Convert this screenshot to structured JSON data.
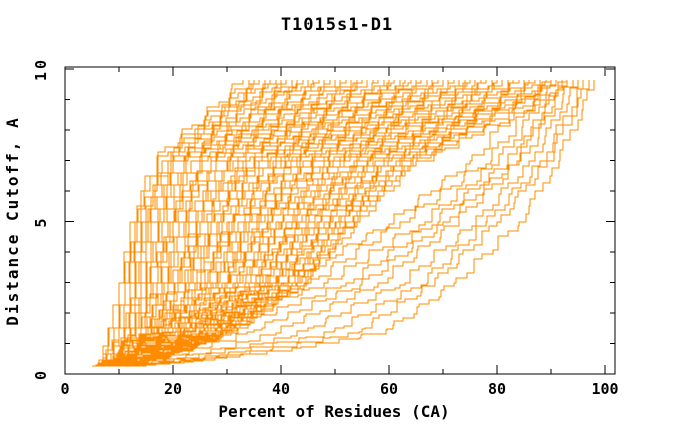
{
  "figure": {
    "background": "#ffffff",
    "axis_color": "#000000",
    "curve_color": "#ff8c00"
  },
  "chart_data": {
    "type": "line",
    "title": "T1015s1-D1",
    "xlabel": "Percent of Residues (CA)",
    "ylabel": "Distance Cutoff, A",
    "xlim": [
      0,
      102
    ],
    "ylim": [
      0,
      10.07
    ],
    "grid": "off",
    "legend": "none",
    "x_major_ticks": [
      0,
      20,
      40,
      60,
      80,
      100
    ],
    "x_minor_ticks": [
      10,
      30,
      50,
      70,
      90
    ],
    "y_major_ticks": [
      0,
      5,
      10
    ],
    "y_minor_ticks": [
      1,
      2,
      3,
      4,
      6,
      7,
      8,
      9
    ],
    "series_color": "#ff8c00",
    "n_series": 80,
    "anchor_cutoffs": [
      0.25,
      1.5,
      3,
      5,
      7,
      9.65
    ],
    "curves": [
      [
        5,
        8,
        10,
        12,
        16,
        33
      ],
      [
        6,
        8,
        10,
        13,
        17,
        34
      ],
      [
        7,
        9,
        11,
        13,
        18,
        35
      ],
      [
        8,
        9,
        11,
        14,
        18,
        36
      ],
      [
        5,
        10,
        12,
        14,
        19,
        36
      ],
      [
        6,
        10,
        12,
        15,
        20,
        37
      ],
      [
        7,
        10,
        13,
        15,
        20,
        38
      ],
      [
        8,
        11,
        13,
        16,
        21,
        39
      ],
      [
        5,
        11,
        14,
        17,
        22,
        40
      ],
      [
        6,
        12,
        14,
        17,
        22,
        41
      ],
      [
        7,
        12,
        15,
        18,
        23,
        42
      ],
      [
        8,
        12,
        15,
        19,
        24,
        43
      ],
      [
        5,
        13,
        16,
        19,
        25,
        43
      ],
      [
        6,
        13,
        16,
        20,
        25,
        44
      ],
      [
        7,
        13,
        17,
        20,
        26,
        45
      ],
      [
        8,
        14,
        17,
        21,
        27,
        46
      ],
      [
        5,
        14,
        18,
        22,
        27,
        47
      ],
      [
        6,
        14,
        18,
        22,
        28,
        48
      ],
      [
        7,
        15,
        19,
        23,
        29,
        48
      ],
      [
        8,
        15,
        19,
        24,
        30,
        49
      ],
      [
        5,
        15,
        20,
        24,
        30,
        50
      ],
      [
        6,
        16,
        20,
        25,
        31,
        51
      ],
      [
        7,
        16,
        21,
        25,
        32,
        52
      ],
      [
        8,
        16,
        21,
        26,
        32,
        53
      ],
      [
        5,
        17,
        22,
        27,
        33,
        54
      ],
      [
        6,
        17,
        22,
        27,
        34,
        54
      ],
      [
        7,
        17,
        23,
        28,
        34,
        55
      ],
      [
        8,
        18,
        23,
        28,
        35,
        56
      ],
      [
        5,
        18,
        24,
        29,
        36,
        57
      ],
      [
        6,
        18,
        24,
        30,
        37,
        58
      ],
      [
        7,
        19,
        25,
        30,
        37,
        59
      ],
      [
        8,
        19,
        25,
        31,
        38,
        60
      ],
      [
        5,
        19,
        26,
        31,
        39,
        60
      ],
      [
        6,
        20,
        26,
        32,
        39,
        61
      ],
      [
        7,
        20,
        27,
        33,
        40,
        62
      ],
      [
        8,
        20,
        27,
        33,
        41,
        63
      ],
      [
        5,
        21,
        28,
        34,
        41,
        64
      ],
      [
        6,
        21,
        28,
        34,
        42,
        65
      ],
      [
        7,
        21,
        29,
        35,
        43,
        65
      ],
      [
        8,
        22,
        29,
        36,
        44,
        66
      ],
      [
        5,
        22,
        30,
        36,
        44,
        67
      ],
      [
        6,
        22,
        30,
        37,
        45,
        68
      ],
      [
        7,
        23,
        31,
        37,
        46,
        69
      ],
      [
        8,
        23,
        31,
        38,
        46,
        70
      ],
      [
        5,
        23,
        32,
        39,
        47,
        70
      ],
      [
        6,
        24,
        32,
        39,
        48,
        71
      ],
      [
        7,
        24,
        33,
        40,
        49,
        72
      ],
      [
        8,
        24,
        33,
        40,
        49,
        73
      ],
      [
        5,
        25,
        34,
        41,
        50,
        74
      ],
      [
        6,
        25,
        34,
        42,
        51,
        75
      ],
      [
        7,
        25,
        35,
        42,
        51,
        75
      ],
      [
        8,
        26,
        35,
        43,
        52,
        76
      ],
      [
        5,
        26,
        36,
        43,
        53,
        77
      ],
      [
        6,
        26,
        36,
        44,
        54,
        78
      ],
      [
        7,
        27,
        37,
        45,
        54,
        79
      ],
      [
        8,
        27,
        37,
        45,
        55,
        80
      ],
      [
        5,
        27,
        38,
        46,
        56,
        80
      ],
      [
        6,
        28,
        38,
        46,
        56,
        81
      ],
      [
        7,
        28,
        39,
        47,
        57,
        82
      ],
      [
        8,
        28,
        39,
        48,
        58,
        83
      ],
      [
        5,
        29,
        40,
        48,
        59,
        84
      ],
      [
        6,
        29,
        40,
        49,
        59,
        85
      ],
      [
        7,
        29,
        41,
        50,
        60,
        86
      ],
      [
        8,
        30,
        41,
        50,
        61,
        87
      ],
      [
        5,
        30,
        42,
        51,
        62,
        88
      ],
      [
        6,
        30,
        42,
        51,
        62,
        89
      ],
      [
        7,
        31,
        43,
        52,
        63,
        90
      ],
      [
        8,
        31,
        43,
        53,
        64,
        91
      ],
      [
        5,
        31,
        44,
        53,
        64,
        93
      ],
      [
        6,
        32,
        44,
        54,
        65,
        95
      ],
      [
        5,
        20,
        45,
        62,
        78,
        90
      ],
      [
        6,
        30,
        52,
        68,
        82,
        93
      ],
      [
        5,
        45,
        62,
        76,
        86,
        95
      ],
      [
        6,
        55,
        68,
        80,
        89,
        97
      ],
      [
        5,
        60,
        72,
        84,
        91,
        98
      ],
      [
        7,
        40,
        58,
        72,
        84,
        94
      ],
      [
        6,
        50,
        66,
        78,
        88,
        96
      ],
      [
        5,
        35,
        55,
        70,
        83,
        92
      ],
      [
        6,
        25,
        48,
        66,
        80,
        91
      ],
      [
        7,
        15,
        40,
        60,
        75,
        88
      ]
    ]
  }
}
